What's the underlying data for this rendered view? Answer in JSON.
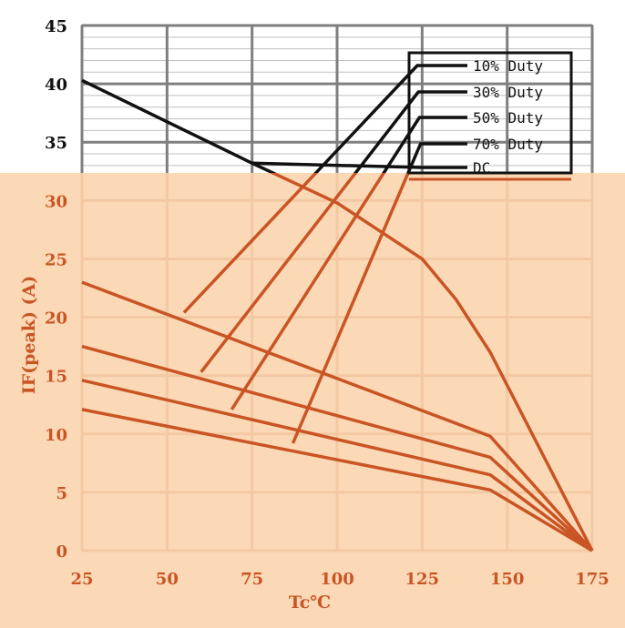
{
  "chart_data": {
    "type": "line",
    "title": "",
    "xlabel": "Tc℃",
    "ylabel": "IF(peak) (A)",
    "xlim": [
      25,
      175
    ],
    "ylim": [
      0,
      45
    ],
    "x_ticks": [
      "25",
      "50",
      "75",
      "100",
      "125",
      "150",
      "175"
    ],
    "y_ticks": [
      "0",
      "5",
      "10",
      "15",
      "20",
      "25",
      "30",
      "35",
      "40",
      "45"
    ],
    "grid": true,
    "legend_position": "top-right",
    "colors": {
      "upper_panel_bg": "#ffffff",
      "lower_panel_bg": "#fcd9b6",
      "grid_major": "#7f7f7f",
      "grid_minor": "#bfbfbf",
      "grid_lower": "#f3c9a4",
      "series_upper": "#111111",
      "series_lower": "#c95424",
      "axis_text": "#c95424"
    },
    "series": [
      {
        "name": "10% Duty",
        "points": [
          [
            25,
            23.0
          ],
          [
            145,
            9.8
          ],
          [
            175,
            0
          ]
        ]
      },
      {
        "name": "30% Duty",
        "points": [
          [
            25,
            17.5
          ],
          [
            145,
            8.0
          ],
          [
            175,
            0
          ]
        ]
      },
      {
        "name": "50% Duty",
        "points": [
          [
            25,
            14.6
          ],
          [
            145,
            6.5
          ],
          [
            175,
            0
          ]
        ]
      },
      {
        "name": "70% Duty",
        "points": [
          [
            25,
            12.1
          ],
          [
            145,
            5.2
          ],
          [
            175,
            0
          ]
        ]
      },
      {
        "name": "DC",
        "points": [
          [
            25,
            40.3
          ],
          [
            75,
            33.2
          ],
          [
            100,
            29.8
          ],
          [
            125,
            25.0
          ],
          [
            135,
            21.5
          ],
          [
            145,
            17.0
          ],
          [
            175,
            0
          ]
        ]
      }
    ],
    "legend_pointers": [
      {
        "series": "10% Duty",
        "target": [
          55,
          20.4
        ]
      },
      {
        "series": "30% Duty",
        "target": [
          60,
          15.3
        ]
      },
      {
        "series": "50% Duty",
        "target": [
          69,
          12.1
        ]
      },
      {
        "series": "70% Duty",
        "target": [
          87,
          9.2
        ]
      },
      {
        "series": "DC",
        "target": [
          75,
          33.2
        ]
      }
    ]
  }
}
